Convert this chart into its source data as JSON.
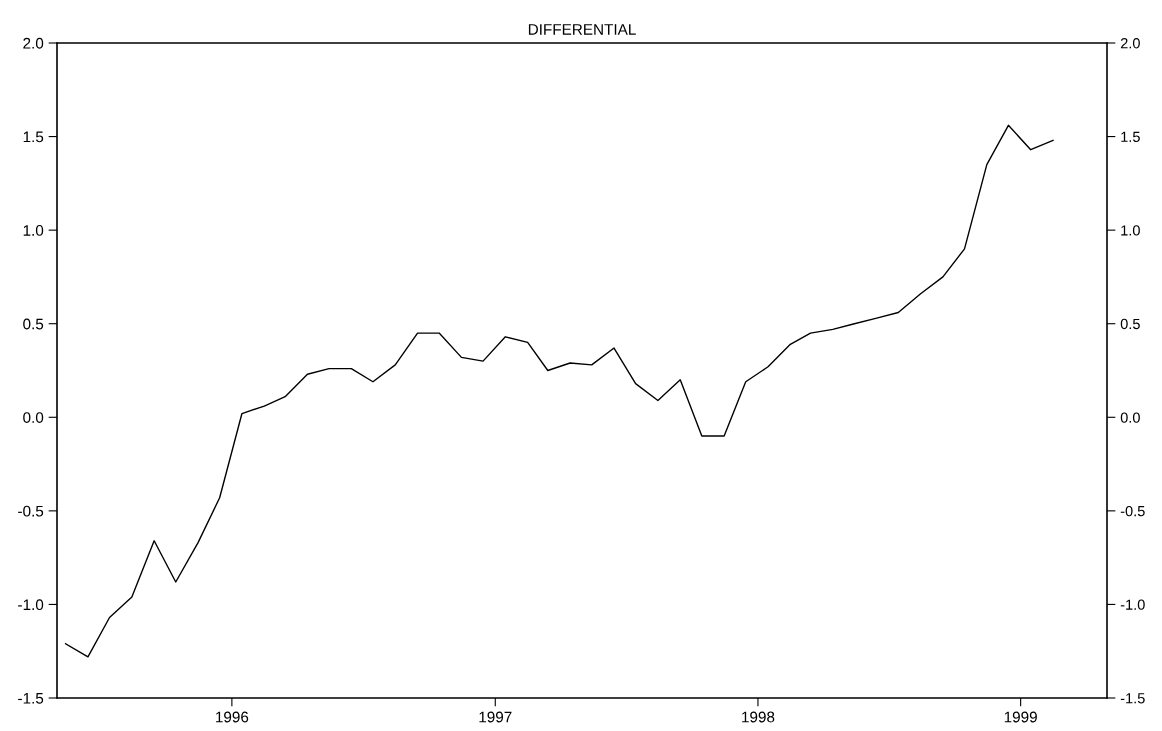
{
  "chart_data": {
    "type": "line",
    "title": "DIFFERENTIAL",
    "x": [
      "1995-05-15",
      "1995-06-15",
      "1995-07-15",
      "1995-08-15",
      "1995-09-15",
      "1995-10-15",
      "1995-11-15",
      "1995-12-15",
      "1996-01-15",
      "1996-02-15",
      "1996-03-15",
      "1996-04-15",
      "1996-05-15",
      "1996-06-15",
      "1996-07-15",
      "1996-08-15",
      "1996-09-15",
      "1996-10-15",
      "1996-11-15",
      "1996-12-15",
      "1997-01-15",
      "1997-02-15",
      "1997-03-15",
      "1997-04-15",
      "1997-05-15",
      "1997-06-15",
      "1997-07-15",
      "1997-08-15",
      "1997-09-15",
      "1997-10-15",
      "1997-11-15",
      "1997-12-15",
      "1998-01-15",
      "1998-02-15",
      "1998-03-15",
      "1998-04-15",
      "1998-05-15",
      "1998-06-15",
      "1998-07-15",
      "1998-08-15",
      "1998-09-15",
      "1998-10-15",
      "1998-11-15",
      "1998-12-15",
      "1999-01-15",
      "1999-02-15"
    ],
    "series": [
      {
        "color": "#000000",
        "values": [
          -1.21,
          -1.28,
          -1.07,
          -0.96,
          -0.66,
          -0.88,
          -0.67,
          -0.43,
          0.02,
          0.06,
          0.11,
          0.23,
          0.26,
          0.26,
          0.19,
          0.28,
          0.45,
          0.45,
          0.32,
          0.3,
          0.43,
          0.4,
          0.25,
          0.29,
          0.28,
          0.37,
          0.18,
          0.09,
          0.2,
          -0.1,
          -0.1,
          0.19,
          0.27,
          0.39,
          0.45,
          0.47,
          0.5,
          0.53,
          0.56,
          0.66,
          0.75,
          0.9,
          1.35,
          1.56,
          1.43,
          1.48
        ]
      }
    ],
    "xlim": [
      "1995-05-03",
      "1999-05-01"
    ],
    "xticks": [
      {
        "value": "1996-01-01",
        "label": "1996"
      },
      {
        "value": "1997-01-01",
        "label": "1997"
      },
      {
        "value": "1998-01-01",
        "label": "1998"
      },
      {
        "value": "1999-01-01",
        "label": "1999"
      }
    ],
    "ylim": [
      -1.5,
      2.0
    ],
    "yticks": [
      {
        "value": -1.5,
        "label": "-1.5"
      },
      {
        "value": -1.0,
        "label": "-1.0"
      },
      {
        "value": -0.5,
        "label": "-0.5"
      },
      {
        "value": 0.0,
        "label": "0.0"
      },
      {
        "value": 0.5,
        "label": "0.5"
      },
      {
        "value": 1.0,
        "label": "1.0"
      },
      {
        "value": 1.5,
        "label": "1.5"
      },
      {
        "value": 2.0,
        "label": "2.0"
      }
    ],
    "y2lim": [
      -1.5,
      2.0
    ],
    "y2ticks": [
      {
        "value": -1.5,
        "label": "-1.5"
      },
      {
        "value": -1.0,
        "label": "-1.0"
      },
      {
        "value": -0.5,
        "label": "-0.5"
      },
      {
        "value": 0.0,
        "label": "0.0"
      },
      {
        "value": 0.5,
        "label": "0.5"
      },
      {
        "value": 1.0,
        "label": "1.0"
      },
      {
        "value": 1.5,
        "label": "1.5"
      },
      {
        "value": 2.0,
        "label": "2.0"
      }
    ],
    "grid": false,
    "marker": "none",
    "line_style": "solid"
  }
}
